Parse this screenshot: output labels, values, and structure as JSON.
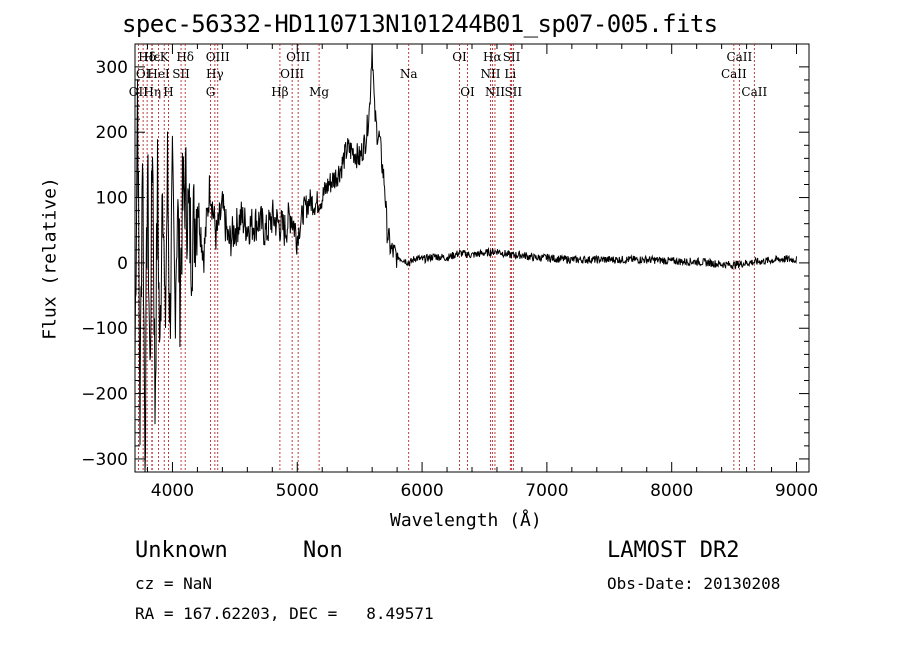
{
  "chart_data": {
    "type": "line",
    "title": "spec-56332-HD110713N101244B01_sp07-005.fits",
    "xlabel": "Wavelength (Å)",
    "ylabel": "Flux (relative)",
    "xlim": [
      3700,
      9100
    ],
    "ylim": [
      -320,
      335
    ],
    "xticks": [
      4000,
      5000,
      6000,
      7000,
      8000,
      9000
    ],
    "yticks": [
      -300,
      -200,
      -100,
      0,
      100,
      200,
      300
    ],
    "grid": false,
    "series": [
      {
        "x": [
          3700,
          3720,
          3740,
          3760,
          3780,
          3800,
          3820,
          3840,
          3860,
          3880,
          3900,
          3920,
          3940,
          3960,
          3980,
          4000,
          4020,
          4040,
          4060,
          4080,
          4100,
          4150,
          4200,
          4250,
          4300,
          4350,
          4400,
          4450,
          4500,
          4550,
          4600,
          4650,
          4700,
          4750,
          4800,
          4850,
          4900,
          4950,
          5000,
          5050,
          5100,
          5150,
          5200,
          5250,
          5300,
          5350,
          5400,
          5450,
          5500,
          5550,
          5580,
          5600,
          5620,
          5640,
          5660,
          5680,
          5700,
          5720,
          5750,
          5800,
          5850,
          5900,
          5950,
          6000,
          6100,
          6200,
          6300,
          6400,
          6500,
          6600,
          6700,
          6800,
          6900,
          7000,
          7100,
          7200,
          7300,
          7400,
          7500,
          7600,
          7700,
          7800,
          7900,
          8000,
          8100,
          8200,
          8300,
          8400,
          8500,
          8600,
          8700,
          8800,
          8900,
          9000
        ],
        "y": [
          -150,
          280,
          -240,
          200,
          -300,
          150,
          -180,
          210,
          -220,
          120,
          -160,
          180,
          -120,
          140,
          -90,
          110,
          -60,
          90,
          -40,
          80,
          120,
          30,
          95,
          10,
          120,
          40,
          85,
          30,
          50,
          70,
          55,
          60,
          65,
          45,
          70,
          60,
          50,
          75,
          40,
          80,
          95,
          90,
          100,
          120,
          130,
          145,
          175,
          170,
          160,
          190,
          240,
          335,
          230,
          200,
          190,
          150,
          120,
          50,
          20,
          10,
          5,
          0,
          8,
          5,
          10,
          8,
          15,
          12,
          15,
          18,
          12,
          12,
          8,
          8,
          6,
          5,
          5,
          5,
          5,
          5,
          5,
          5,
          4,
          3,
          2,
          2,
          0,
          -2,
          -3,
          0,
          2,
          4,
          6,
          5
        ]
      }
    ],
    "lines": [
      {
        "label": "Hδ",
        "x": 3797,
        "row": 1
      },
      {
        "label": "OI",
        "x": 3765,
        "row": 2
      },
      {
        "label": "OII",
        "x": 3727,
        "row": 3
      },
      {
        "label": "Hε",
        "x": 3835,
        "row": 1
      },
      {
        "label": "HeI",
        "x": 3889,
        "row": 2
      },
      {
        "label": "Hη",
        "x": 3838,
        "row": 3
      },
      {
        "label": "K",
        "x": 3934,
        "row": 1
      },
      {
        "label": "SII",
        "x": 4069,
        "row": 2
      },
      {
        "label": "H",
        "x": 3968,
        "row": 3
      },
      {
        "label": "Hδ",
        "x": 4102,
        "row": 1
      },
      {
        "label": "OIII",
        "x": 4363,
        "row": 1
      },
      {
        "label": "Hγ",
        "x": 4340,
        "row": 2
      },
      {
        "label": "G",
        "x": 4305,
        "row": 3
      },
      {
        "label": "Hβ",
        "x": 4861,
        "row": 3
      },
      {
        "label": "OIII",
        "x": 5007,
        "row": 1
      },
      {
        "label": "OIII",
        "x": 4959,
        "row": 2
      },
      {
        "label": "Mg",
        "x": 5175,
        "row": 3
      },
      {
        "label": "Na",
        "x": 5893,
        "row": 2
      },
      {
        "label": "OI",
        "x": 6300,
        "row": 1
      },
      {
        "label": "OI",
        "x": 6364,
        "row": 3
      },
      {
        "label": "Hα",
        "x": 6563,
        "row": 1
      },
      {
        "label": "NII",
        "x": 6548,
        "row": 2
      },
      {
        "label": "NII",
        "x": 6584,
        "row": 3
      },
      {
        "label": "SII",
        "x": 6717,
        "row": 1
      },
      {
        "label": "Li",
        "x": 6707,
        "row": 2
      },
      {
        "label": "SII",
        "x": 6731,
        "row": 3
      },
      {
        "label": "CaII",
        "x": 8542,
        "row": 1
      },
      {
        "label": "CaII",
        "x": 8498,
        "row": 2
      },
      {
        "label": "CaII",
        "x": 8662,
        "row": 3
      }
    ]
  },
  "footer": {
    "class": "Unknown",
    "subclass": "Non",
    "survey": "LAMOST DR2",
    "cz": "cz = NaN",
    "obsdate": "Obs-Date: 20130208",
    "radec": "RA = 167.62203, DEC =   8.49571"
  }
}
